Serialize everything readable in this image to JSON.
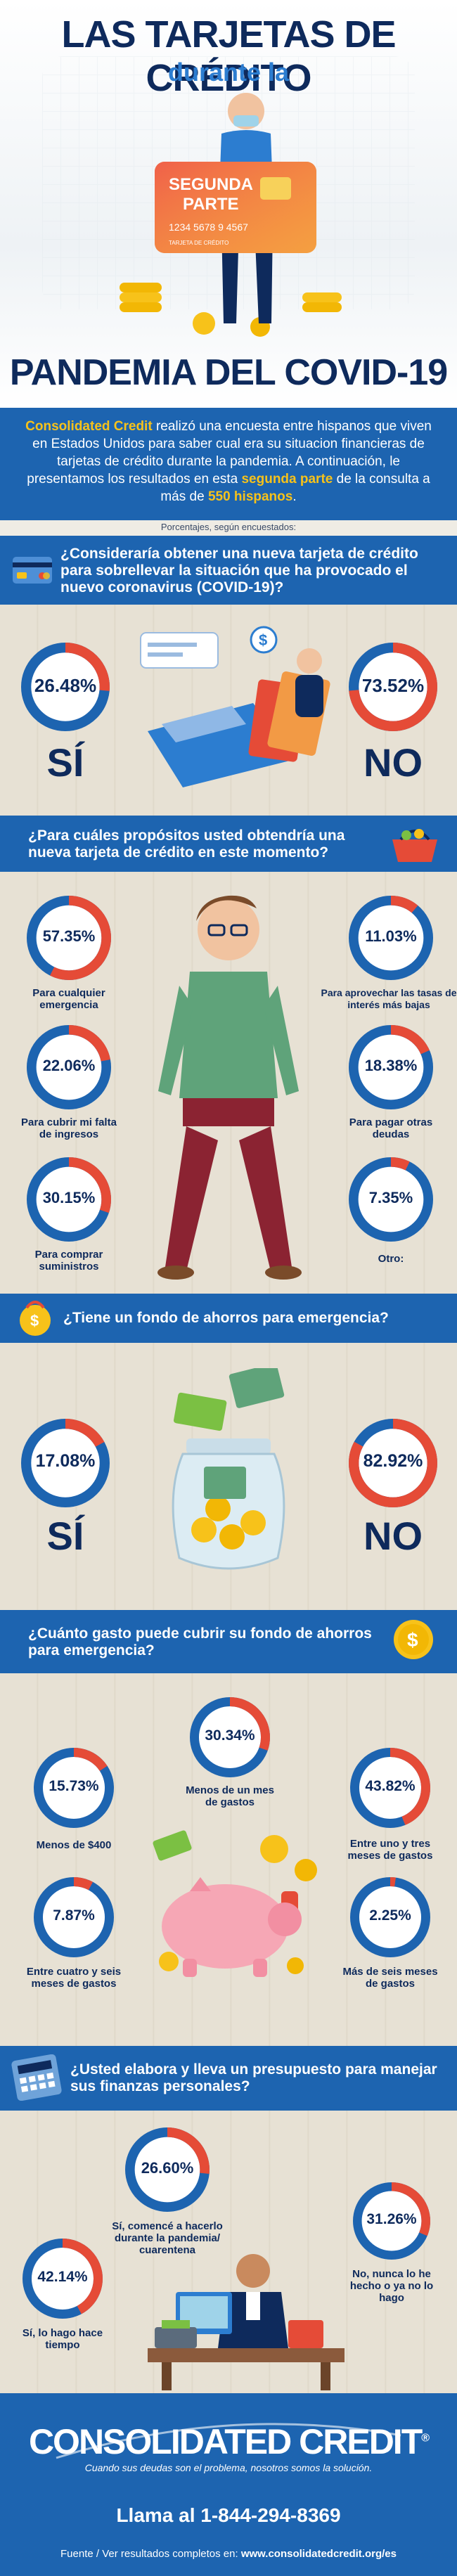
{
  "header": {
    "title_line1": "LAS TARJETAS DE CRÉDITO",
    "title_line2": "durante la",
    "title_line3": "PANDEMIA DEL COVID-19",
    "card_text1": "SEGUNDA",
    "card_text2": "PARTE",
    "card_number": "1234  5678  9  4567",
    "card_small": "TARJETA DE CRÉDITO"
  },
  "intro": {
    "brand": "Consolidated Credit",
    "text_a": " realizó una encuesta entre hispanos que viven en Estados Unidos para saber cual era su situacion financieras de tarjetas de crédito durante la pandemia. A continuación, le presentamos los resultados en esta ",
    "highlight_a": "segunda parte",
    "text_b": " de la consulta a más de ",
    "highlight_b": "550 hispanos",
    "text_c": "."
  },
  "percent_note": "Porcentajes, según encuestados:",
  "colors": {
    "ring": "#1d64b0",
    "fill": "#e54b37",
    "band": "#1d64b0",
    "accent": "#f7c21a"
  },
  "chart_data": [
    {
      "type": "pie",
      "title": "¿Consideraría obtener una nueva tarjeta de crédito para sobrellevar la situación que ha provocado el nuevo coronavirus (COVID-19)?",
      "categories": [
        "SÍ",
        "NO"
      ],
      "values": [
        26.48,
        73.52
      ],
      "labels": [
        "26.48%",
        "73.52%"
      ]
    },
    {
      "type": "pie",
      "title": "¿Para cuáles propósitos usted obtendría una nueva tarjeta de crédito en este momento?",
      "categories": [
        "Para cualquier emergencia",
        "Para aprovechar las tasas de interés más bajas",
        "Para cubrir mi falta de ingresos",
        "Para pagar otras deudas",
        "Para comprar suministros",
        "Otro:"
      ],
      "values": [
        57.35,
        11.03,
        22.06,
        18.38,
        30.15,
        7.35
      ],
      "labels": [
        "57.35%",
        "11.03%",
        "22.06%",
        "18.38%",
        "30.15%",
        "7.35%"
      ]
    },
    {
      "type": "pie",
      "title": "¿Tiene un fondo de ahorros para emergencia?",
      "categories": [
        "SÍ",
        "NO"
      ],
      "values": [
        17.08,
        82.92
      ],
      "labels": [
        "17.08%",
        "82.92%"
      ]
    },
    {
      "type": "pie",
      "title": "¿Cuánto gasto puede cubrir su fondo de ahorros para emergencia?",
      "categories": [
        "Menos de $400",
        "Menos de un mes de gastos",
        "Entre uno y tres meses de gastos",
        "Entre cuatro y seis meses de gastos",
        "Más de seis meses de gastos"
      ],
      "values": [
        15.73,
        30.34,
        43.82,
        7.87,
        2.25
      ],
      "labels": [
        "15.73%",
        "30.34%",
        "43.82%",
        "7.87%",
        "2.25%"
      ]
    },
    {
      "type": "pie",
      "title": "¿Usted elabora y lleva un presupuesto para manejar sus finanzas personales?",
      "categories": [
        "Sí, comencé a hacerlo durante la pandemia/ cuarentena",
        "No, nunca lo he hecho o ya no lo hago",
        "Sí, lo hago hace tiempo"
      ],
      "values": [
        26.6,
        31.26,
        42.14
      ],
      "labels": [
        "26.60%",
        "31.26%",
        "42.14%"
      ]
    }
  ],
  "footer": {
    "logo": "CONSOLIDATED CREDIT",
    "reg": "®",
    "tagline": "Cuando sus deudas son el problema, nosotros somos la solución.",
    "phone": "Llama al 1-844-294-8369",
    "source_label": "Fuente / Ver resultados completos en: ",
    "source_url": "www.consolidatedcredit.org/es"
  }
}
